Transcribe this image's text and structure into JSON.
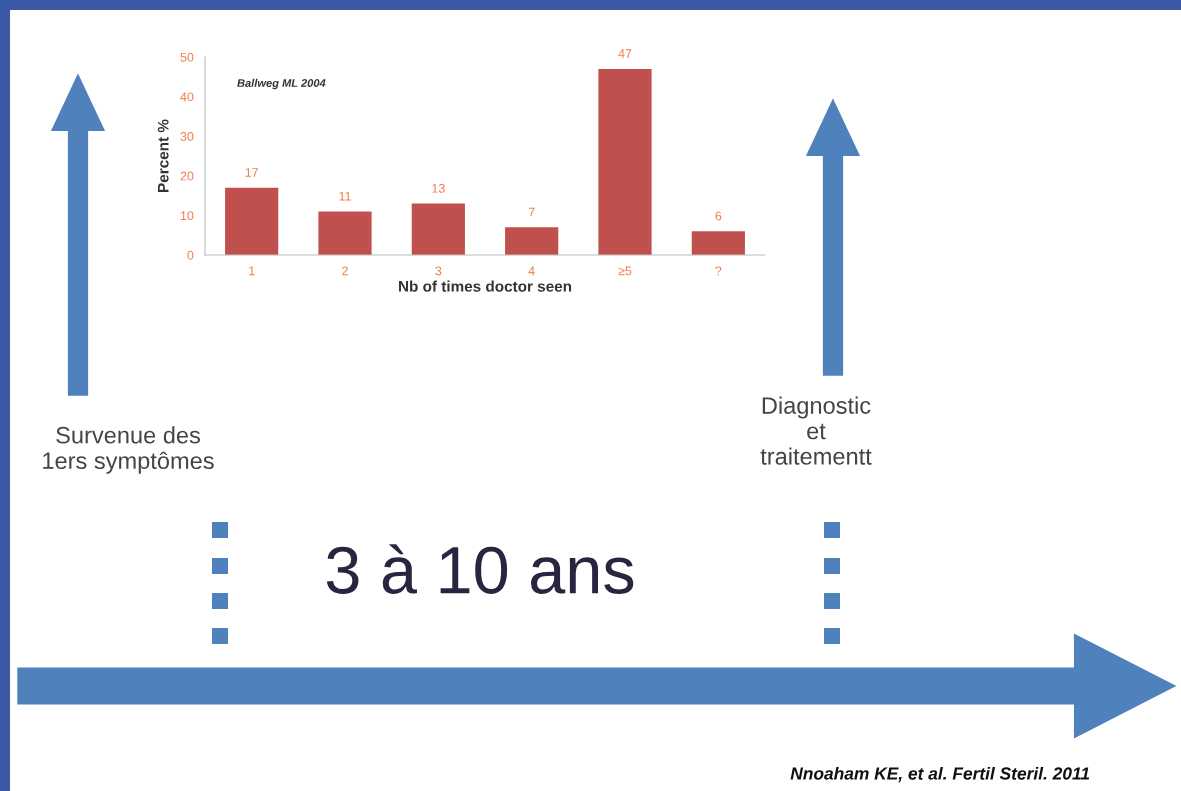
{
  "chart_data": {
    "type": "bar",
    "xlabel": "Nb of times doctor seen",
    "ylabel": "Percent %",
    "categories": [
      "1",
      "2",
      "3",
      "4",
      "≥5",
      "?"
    ],
    "values": [
      17,
      11,
      13,
      7,
      47,
      6
    ],
    "color": "#c0504d",
    "ylim": [
      0,
      50
    ],
    "yticks": [
      0,
      10,
      20,
      30,
      40,
      50
    ],
    "grid": false,
    "data_labels": true,
    "annotations": [
      "Ballweg ML 2004",
      "Survenue des\n1ers symptômes",
      "Diagnostic\net\ntraitementt",
      "3 à 10 ans",
      "Nnoaham KE, et al. Fertil Steril. 2011"
    ]
  }
}
